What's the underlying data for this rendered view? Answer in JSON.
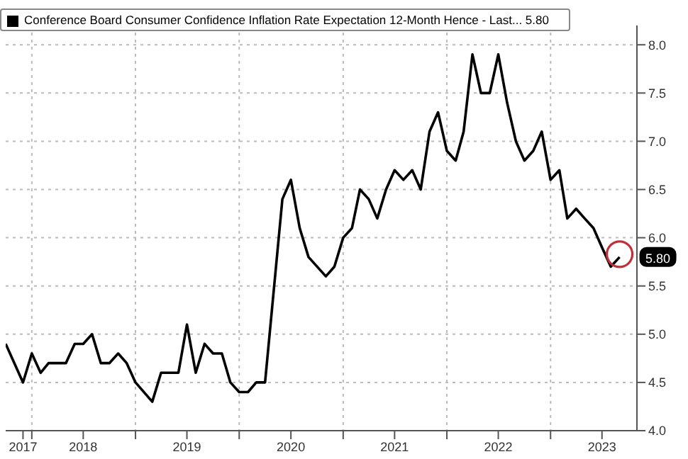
{
  "chart_data": {
    "type": "line",
    "x": [
      "2017-10",
      "2017-12",
      "2018-01",
      "2018-02",
      "2018-03",
      "2018-05",
      "2018-06",
      "2018-07",
      "2018-08",
      "2018-09",
      "2018-10",
      "2018-11",
      "2018-12",
      "2019-01",
      "2019-03",
      "2019-04",
      "2019-06",
      "2019-07",
      "2019-08",
      "2019-09",
      "2019-10",
      "2019-11",
      "2019-12",
      "2020-01",
      "2020-02",
      "2020-03",
      "2020-04",
      "2020-06",
      "2020-07",
      "2020-08",
      "2020-09",
      "2020-11",
      "2020-12",
      "2021-01",
      "2021-02",
      "2021-03",
      "2021-04",
      "2021-05",
      "2021-06",
      "2021-07",
      "2021-08",
      "2021-09",
      "2021-10",
      "2021-11",
      "2021-12",
      "2022-01",
      "2022-02",
      "2022-03",
      "2022-04",
      "2022-05",
      "2022-06",
      "2022-07",
      "2022-08",
      "2022-09",
      "2022-10",
      "2022-11",
      "2022-12",
      "2023-01",
      "2023-02",
      "2023-03",
      "2023-04",
      "2023-05",
      "2023-06",
      "2023-07",
      "2023-08",
      "2023-09"
    ],
    "series": [
      {
        "name": "Conference Board Consumer Confidence Inflation Rate Expectation 12-Month Hence - Last... 5.80",
        "color": "#000000",
        "values": [
          4.9,
          4.5,
          4.8,
          4.6,
          4.7,
          4.7,
          4.9,
          4.9,
          5.0,
          4.7,
          4.7,
          4.8,
          4.7,
          4.5,
          4.3,
          4.6,
          4.6,
          5.1,
          4.6,
          4.9,
          4.8,
          4.8,
          4.5,
          4.4,
          4.4,
          4.5,
          4.5,
          6.4,
          6.6,
          6.1,
          5.8,
          5.6,
          5.7,
          6.0,
          6.1,
          6.5,
          6.4,
          6.2,
          6.5,
          6.7,
          6.6,
          6.7,
          6.5,
          7.1,
          7.3,
          6.9,
          6.8,
          7.1,
          7.9,
          7.5,
          7.5,
          7.9,
          7.4,
          7.0,
          6.8,
          6.9,
          7.1,
          6.6,
          6.7,
          6.2,
          6.3,
          6.2,
          6.1,
          5.9,
          5.7,
          5.8
        ]
      }
    ],
    "xlim": [
      "2017-10",
      "2023-11"
    ],
    "xticks": [
      {
        "value": "2017-12",
        "label": "2017"
      },
      {
        "value": "2018-01",
        "label": null
      },
      {
        "value": "2018-07",
        "label": "2018"
      },
      {
        "value": "2019-01",
        "label": null
      },
      {
        "value": "2019-07",
        "label": "2019"
      },
      {
        "value": "2020-01",
        "label": null
      },
      {
        "value": "2020-07",
        "label": "2020"
      },
      {
        "value": "2021-01",
        "label": null
      },
      {
        "value": "2021-07",
        "label": "2021"
      },
      {
        "value": "2022-01",
        "label": null
      },
      {
        "value": "2022-07",
        "label": "2022"
      },
      {
        "value": "2023-01",
        "label": null
      },
      {
        "value": "2023-07",
        "label": "2023"
      }
    ],
    "ylim": [
      4.0,
      8.2
    ],
    "yticks": [
      {
        "value": 4.0,
        "label": "4.0"
      },
      {
        "value": 4.5,
        "label": "4.5"
      },
      {
        "value": 5.0,
        "label": "5.0"
      },
      {
        "value": 5.5,
        "label": "5.5"
      },
      {
        "value": 6.0,
        "label": "6.0"
      },
      {
        "value": 6.5,
        "label": "6.5"
      },
      {
        "value": 7.0,
        "label": "7.0"
      },
      {
        "value": 7.5,
        "label": "7.5"
      },
      {
        "value": 8.0,
        "label": "8.0"
      }
    ],
    "annotations": [
      {
        "text": "5.80",
        "x": "2023-09",
        "y": 5.8
      }
    ],
    "grid": true,
    "legend": "top left",
    "marker": "none",
    "line_style": "solid"
  }
}
